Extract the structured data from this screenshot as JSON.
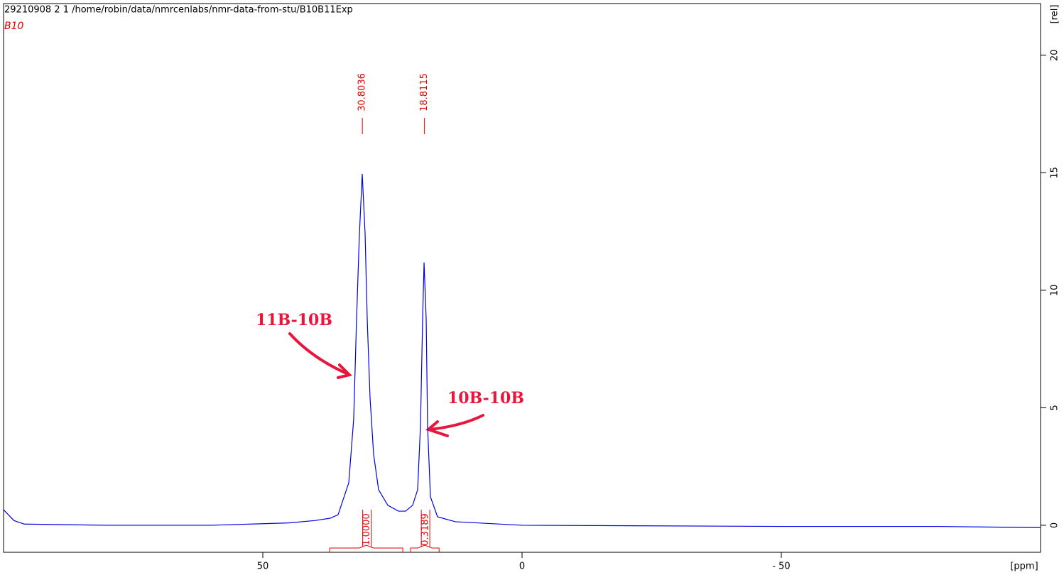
{
  "chart_data": {
    "type": "line",
    "header": "29210908  2  1  /home/robin/data/nmrcenlabs/nmr-data-from-stu/B10B11Exp",
    "subtitle": "B10",
    "x_label": "[ppm]",
    "y_label": "[rel]",
    "color": "#0000e0",
    "x": [
      100,
      98,
      96,
      80,
      60,
      45,
      40,
      37,
      35.48,
      33.42,
      32.47,
      31.92,
      31.37,
      30.82,
      30.27,
      29.86,
      29.32,
      28.63,
      27.67,
      25.89,
      23.84,
      22.47,
      21.1,
      20.14,
      19.59,
      19.18,
      18.9,
      18.49,
      18.22,
      17.67,
      16.3,
      12.88,
      0,
      -50,
      -80,
      -100
    ],
    "values": [
      0.66,
      0.2,
      0.05,
      0.0,
      0.0,
      0.1,
      0.2,
      0.3,
      0.45,
      1.81,
      4.53,
      8.76,
      12.39,
      14.95,
      12.39,
      8.76,
      5.44,
      3.02,
      1.51,
      0.85,
      0.6,
      0.6,
      0.85,
      1.51,
      4.23,
      8.76,
      11.18,
      8.76,
      4.23,
      1.21,
      0.36,
      0.15,
      0.0,
      -0.05,
      -0.05,
      -0.1
    ],
    "xlim": [
      100,
      -100
    ],
    "xticks": [
      50,
      0,
      {
        "value": -50,
        "label": "- 50"
      }
    ],
    "ylim": [
      -1.15,
      22.2
    ],
    "yticks": [
      0,
      5,
      10,
      15,
      20
    ],
    "peak_color": "#e00000",
    "peaks": [
      30.8036,
      18.8115
    ],
    "integrals": {
      "ranges": [
        [
          37.1,
          23.0
        ],
        [
          21.5,
          16.0
        ]
      ],
      "values": [
        1,
        0.3189
      ],
      "value_labels": [
        "1.0000",
        "0.3189"
      ]
    },
    "annotations": [
      "11B-10B",
      "10B-10B"
    ]
  }
}
